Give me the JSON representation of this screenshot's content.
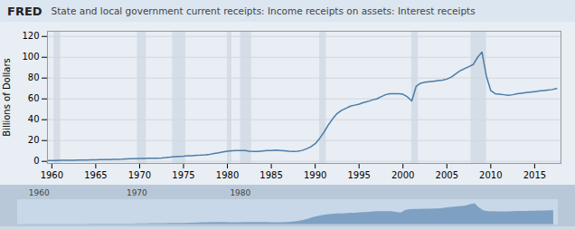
{
  "chart_data": {
    "type": "line",
    "title": "State and local government current receipts: Income receipts on assets: Interest receipts",
    "y_label": "Billions of Dollars",
    "color": "#4d7ca8",
    "xlim": [
      1959.5,
      2018.0
    ],
    "ylim": [
      -2,
      125
    ],
    "xticks": [
      1960,
      1965,
      1970,
      1975,
      1980,
      1985,
      1990,
      1995,
      2000,
      2005,
      2010,
      2015
    ],
    "yticks": [
      0,
      20,
      40,
      60,
      80,
      100,
      120
    ],
    "grid": true,
    "recession_bands": [
      [
        1960.25,
        1961.0
      ],
      [
        1969.75,
        1970.75
      ],
      [
        1973.75,
        1975.25
      ],
      [
        1980.0,
        1980.5
      ],
      [
        1981.5,
        1982.75
      ],
      [
        1990.5,
        1991.25
      ],
      [
        2001.0,
        2001.75
      ],
      [
        2007.75,
        2009.5
      ]
    ],
    "annotations": [
      "FRED",
      "1960",
      "1970",
      "1980"
    ],
    "x": [
      1959.5,
      1960.0,
      1960.5,
      1961.0,
      1961.5,
      1962.0,
      1962.5,
      1963.0,
      1963.5,
      1964.0,
      1964.5,
      1965.0,
      1965.5,
      1966.0,
      1966.5,
      1967.0,
      1967.5,
      1968.0,
      1968.5,
      1969.0,
      1969.5,
      1970.0,
      1970.5,
      1971.0,
      1971.5,
      1972.0,
      1972.5,
      1973.0,
      1973.5,
      1974.0,
      1974.5,
      1975.0,
      1975.5,
      1976.0,
      1976.5,
      1977.0,
      1977.5,
      1978.0,
      1978.5,
      1979.0,
      1979.5,
      1980.0,
      1980.5,
      1981.0,
      1981.5,
      1982.0,
      1982.5,
      1983.0,
      1983.5,
      1984.0,
      1984.5,
      1985.0,
      1985.5,
      1986.0,
      1986.5,
      1987.0,
      1987.5,
      1988.0,
      1988.5,
      1989.0,
      1989.5,
      1990.0,
      1990.5,
      1991.0,
      1991.5,
      1992.0,
      1992.5,
      1993.0,
      1993.5,
      1994.0,
      1994.5,
      1995.0,
      1995.5,
      1996.0,
      1996.5,
      1997.0,
      1997.5,
      1998.0,
      1998.5,
      1999.0,
      1999.5,
      2000.0,
      2000.5,
      2001.0,
      2001.5,
      2002.0,
      2002.5,
      2003.0,
      2003.5,
      2004.0,
      2004.5,
      2005.0,
      2005.5,
      2006.0,
      2006.5,
      2007.0,
      2007.5,
      2008.0,
      2008.5,
      2009.0,
      2009.5,
      2010.0,
      2010.5,
      2011.0,
      2011.5,
      2012.0,
      2012.5,
      2013.0,
      2013.5,
      2014.0,
      2014.5,
      2015.0,
      2015.5,
      2016.0,
      2016.5,
      2017.0,
      2017.5
    ],
    "values": [
      0.8,
      0.9,
      0.9,
      1.0,
      1.0,
      1.1,
      1.1,
      1.2,
      1.3,
      1.3,
      1.4,
      1.5,
      1.6,
      1.7,
      1.8,
      1.9,
      2.0,
      2.1,
      2.3,
      2.5,
      2.6,
      2.7,
      2.8,
      2.9,
      3.0,
      3.1,
      3.3,
      3.6,
      4.0,
      4.5,
      4.8,
      5.0,
      5.3,
      5.5,
      5.8,
      6.0,
      6.3,
      6.8,
      7.5,
      8.2,
      9.0,
      9.8,
      10.2,
      10.5,
      10.5,
      10.3,
      9.8,
      9.5,
      9.6,
      10.0,
      10.3,
      10.5,
      10.8,
      10.5,
      10.2,
      9.8,
      9.6,
      9.8,
      10.5,
      12.0,
      14.0,
      17.0,
      22.0,
      28.0,
      35.0,
      41.0,
      46.0,
      49.0,
      51.0,
      53.0,
      54.0,
      55.0,
      56.5,
      57.5,
      59.0,
      60.0,
      62.0,
      64.0,
      65.0,
      65.0,
      65.0,
      64.5,
      62.0,
      58.0,
      72.0,
      75.0,
      76.0,
      76.5,
      77.0,
      77.5,
      78.0,
      79.0,
      81.0,
      84.0,
      87.0,
      89.0,
      91.0,
      93.0,
      100.0,
      105.0,
      82.0,
      68.0,
      65.0,
      64.5,
      64.0,
      63.5,
      64.0,
      65.0,
      65.5,
      66.0,
      66.5,
      67.0,
      67.5,
      68.0,
      68.5,
      69.0,
      70.0
    ]
  }
}
